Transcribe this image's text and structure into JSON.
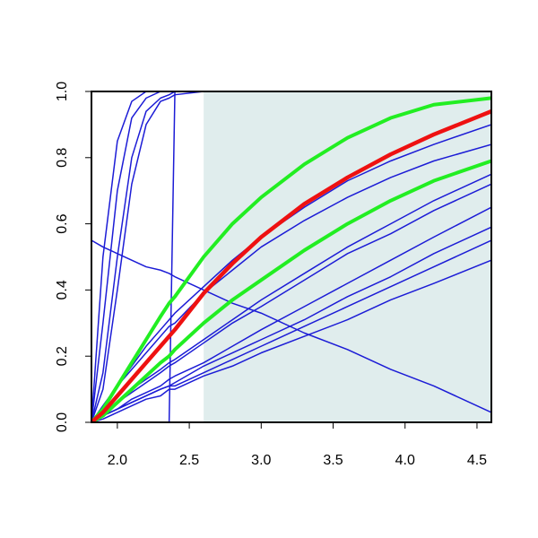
{
  "chart_data": {
    "type": "line",
    "x": [
      1.82,
      1.9,
      2.0,
      2.1,
      2.2,
      2.3,
      2.36,
      2.4,
      2.6,
      2.8,
      3.0,
      3.3,
      3.6,
      3.9,
      4.2,
      4.6
    ],
    "xlim": [
      1.82,
      4.6
    ],
    "ylim": [
      0,
      1
    ],
    "xticks": [
      {
        "value": 2,
        "label": "2.0"
      },
      2.5,
      {
        "value": 3,
        "label": "3.0"
      },
      3.5,
      {
        "value": 4,
        "label": "4.0"
      },
      4.5
    ],
    "yticks": [
      {
        "value": 0,
        "label": "0.0"
      },
      0.2,
      0.4,
      0.6,
      0.8,
      {
        "value": 1,
        "label": "1.0"
      }
    ],
    "shade": {
      "x": [
        2.6,
        4.6
      ],
      "y": [
        0,
        1
      ],
      "color": "#e0eded"
    },
    "series": [
      {
        "color": "#1c1cd6",
        "width": 1.5,
        "values": [
          0,
          0.05,
          0.11,
          0.17,
          0.23,
          0.28,
          0.31,
          0.33,
          0.41,
          0.49,
          0.56,
          0.65,
          0.73,
          0.79,
          0.84,
          0.9
        ]
      },
      {
        "color": "#1c1cd6",
        "width": 1.5,
        "values": [
          0,
          0.05,
          0.11,
          0.16,
          0.21,
          0.26,
          0.29,
          0.3,
          0.39,
          0.46,
          0.53,
          0.61,
          0.68,
          0.74,
          0.79,
          0.84
        ]
      },
      {
        "color": "#1c1cd6",
        "width": 1.5,
        "values": [
          0,
          0.03,
          0.06,
          0.1,
          0.13,
          0.16,
          0.18,
          0.19,
          0.25,
          0.31,
          0.37,
          0.45,
          0.53,
          0.6,
          0.67,
          0.75
        ]
      },
      {
        "color": "#1c1cd6",
        "width": 1.5,
        "values": [
          0,
          0.03,
          0.06,
          0.09,
          0.12,
          0.15,
          0.17,
          0.18,
          0.24,
          0.3,
          0.35,
          0.43,
          0.51,
          0.57,
          0.64,
          0.72
        ]
      },
      {
        "color": "#1c1cd6",
        "width": 1.5,
        "values": [
          0,
          0.02,
          0.04,
          0.07,
          0.09,
          0.11,
          0.13,
          0.14,
          0.18,
          0.23,
          0.28,
          0.35,
          0.42,
          0.49,
          0.56,
          0.65
        ]
      },
      {
        "color": "#1c1cd6",
        "width": 1.5,
        "values": [
          0,
          0.02,
          0.04,
          0.06,
          0.08,
          0.1,
          0.11,
          0.12,
          0.17,
          0.21,
          0.25,
          0.31,
          0.38,
          0.44,
          0.51,
          0.59
        ]
      },
      {
        "color": "#1c1cd6",
        "width": 1.5,
        "values": [
          0,
          0.02,
          0.04,
          0.06,
          0.08,
          0.1,
          0.11,
          0.11,
          0.15,
          0.19,
          0.23,
          0.29,
          0.35,
          0.41,
          0.47,
          0.55
        ]
      },
      {
        "color": "#1c1cd6",
        "width": 1.5,
        "values": [
          0,
          0.01,
          0.03,
          0.05,
          0.07,
          0.08,
          0.1,
          0.1,
          0.14,
          0.17,
          0.21,
          0.26,
          0.31,
          0.37,
          0.42,
          0.49
        ]
      },
      {
        "color": "#1c1cd6",
        "width": 1.5,
        "values": [
          0,
          0.5,
          0.85,
          0.97,
          1,
          1,
          1,
          1,
          1,
          1,
          1,
          1,
          1,
          1,
          1,
          1
        ]
      },
      {
        "color": "#1c1cd6",
        "width": 1.5,
        "values": [
          0,
          0.3,
          0.7,
          0.92,
          0.98,
          1,
          1,
          1,
          1,
          1,
          1,
          1,
          1,
          1,
          1,
          1
        ]
      },
      {
        "color": "#1c1cd6",
        "width": 1.5,
        "values": [
          0,
          0.15,
          0.5,
          0.8,
          0.94,
          0.98,
          0.99,
          1,
          1,
          1,
          1,
          1,
          1,
          1,
          1,
          1
        ]
      },
      {
        "color": "#1c1cd6",
        "width": 1.5,
        "values": [
          0,
          0.1,
          0.4,
          0.72,
          0.9,
          0.97,
          0.98,
          0.99,
          1,
          1,
          1,
          1,
          1,
          1,
          1,
          1
        ]
      },
      {
        "color": "#1c1cd6",
        "width": 1.5,
        "values": [
          0,
          0,
          0,
          0,
          0,
          0,
          0,
          1,
          1,
          1,
          1,
          1,
          1,
          1,
          1,
          1
        ]
      },
      {
        "color": "#1c1cd6",
        "width": 1.5,
        "values": [
          0.55,
          0.53,
          0.51,
          0.49,
          0.47,
          0.46,
          0.45,
          0.44,
          0.4,
          0.36,
          0.33,
          0.27,
          0.22,
          0.16,
          0.11,
          0.03
        ]
      },
      {
        "color": "#22ee22",
        "width": 4,
        "values": [
          0,
          0.02,
          0.06,
          0.1,
          0.14,
          0.18,
          0.2,
          0.22,
          0.3,
          0.37,
          0.43,
          0.52,
          0.6,
          0.67,
          0.73,
          0.79
        ]
      },
      {
        "color": "#22ee22",
        "width": 4,
        "values": [
          0,
          0.04,
          0.11,
          0.18,
          0.25,
          0.32,
          0.36,
          0.38,
          0.5,
          0.6,
          0.68,
          0.78,
          0.86,
          0.92,
          0.96,
          0.98
        ]
      },
      {
        "color": "#ee1111",
        "width": 4.5,
        "values": [
          0,
          0.03,
          0.08,
          0.13,
          0.18,
          0.23,
          0.26,
          0.28,
          0.39,
          0.48,
          0.56,
          0.66,
          0.74,
          0.81,
          0.87,
          0.94
        ]
      }
    ]
  }
}
